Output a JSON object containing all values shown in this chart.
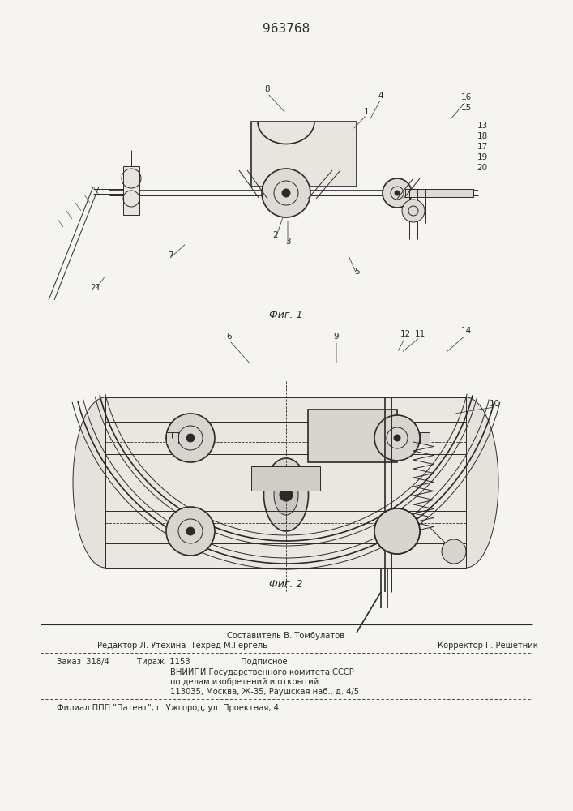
{
  "patent_number": "963768",
  "fig1_caption": "Фиг. 1",
  "fig2_caption": "Фиг. 2",
  "bg_color": "#f5f4f0",
  "lc": "#2a2a2a",
  "footer": {
    "line1": "Составитель В. Томбулатов",
    "line2a": "Редактор Л. Утехина  Техред М.Гергель",
    "line2b": "Корректор Г. Решетник",
    "line3": "Заказ  318/4           Тираж  1153                    Подписное",
    "line4": "ВНИИПИ Государственного комитета СССР",
    "line5": "по делам изобретений и открытий",
    "line6": "113035, Москва, Ж-35, Раушская наб., д. 4/5",
    "line7": "Филиал ППП \"Патент\", г. Ужгород, ул. Проектная, 4"
  }
}
